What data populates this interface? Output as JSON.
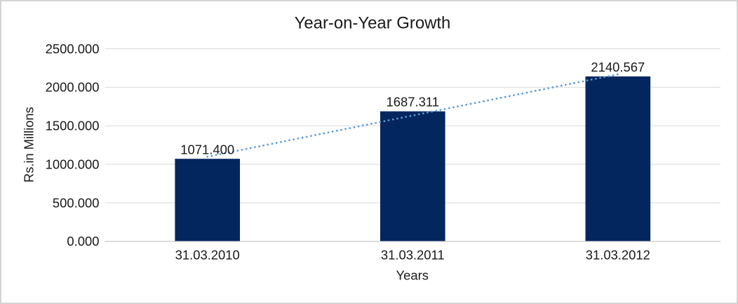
{
  "chart_data": {
    "type": "bar",
    "title": "Year-on-Year Growth",
    "xlabel": "Years",
    "ylabel": "Rs.in Millions",
    "categories": [
      "31.03.2010",
      "31.03.2011",
      "31.03.2012"
    ],
    "values": [
      1071.4,
      1687.311,
      2140.567
    ],
    "value_labels": [
      "1071.400",
      "1687.311",
      "2140.567"
    ],
    "ylim": [
      0,
      2500
    ],
    "ytick_values": [
      0,
      500,
      1000,
      1500,
      2000,
      2500
    ],
    "ytick_labels": [
      "0.000",
      "500.000",
      "1000.000",
      "1500.000",
      "2000.000",
      "2500.000"
    ],
    "grid": true,
    "legend": "none",
    "bar_color": "#03265e",
    "gridline_color": "#d9d9d9",
    "axis_line_color": "#c6c6c6",
    "trendline": {
      "type": "linear",
      "style": "dotted",
      "color": "#5b9bd5"
    }
  }
}
